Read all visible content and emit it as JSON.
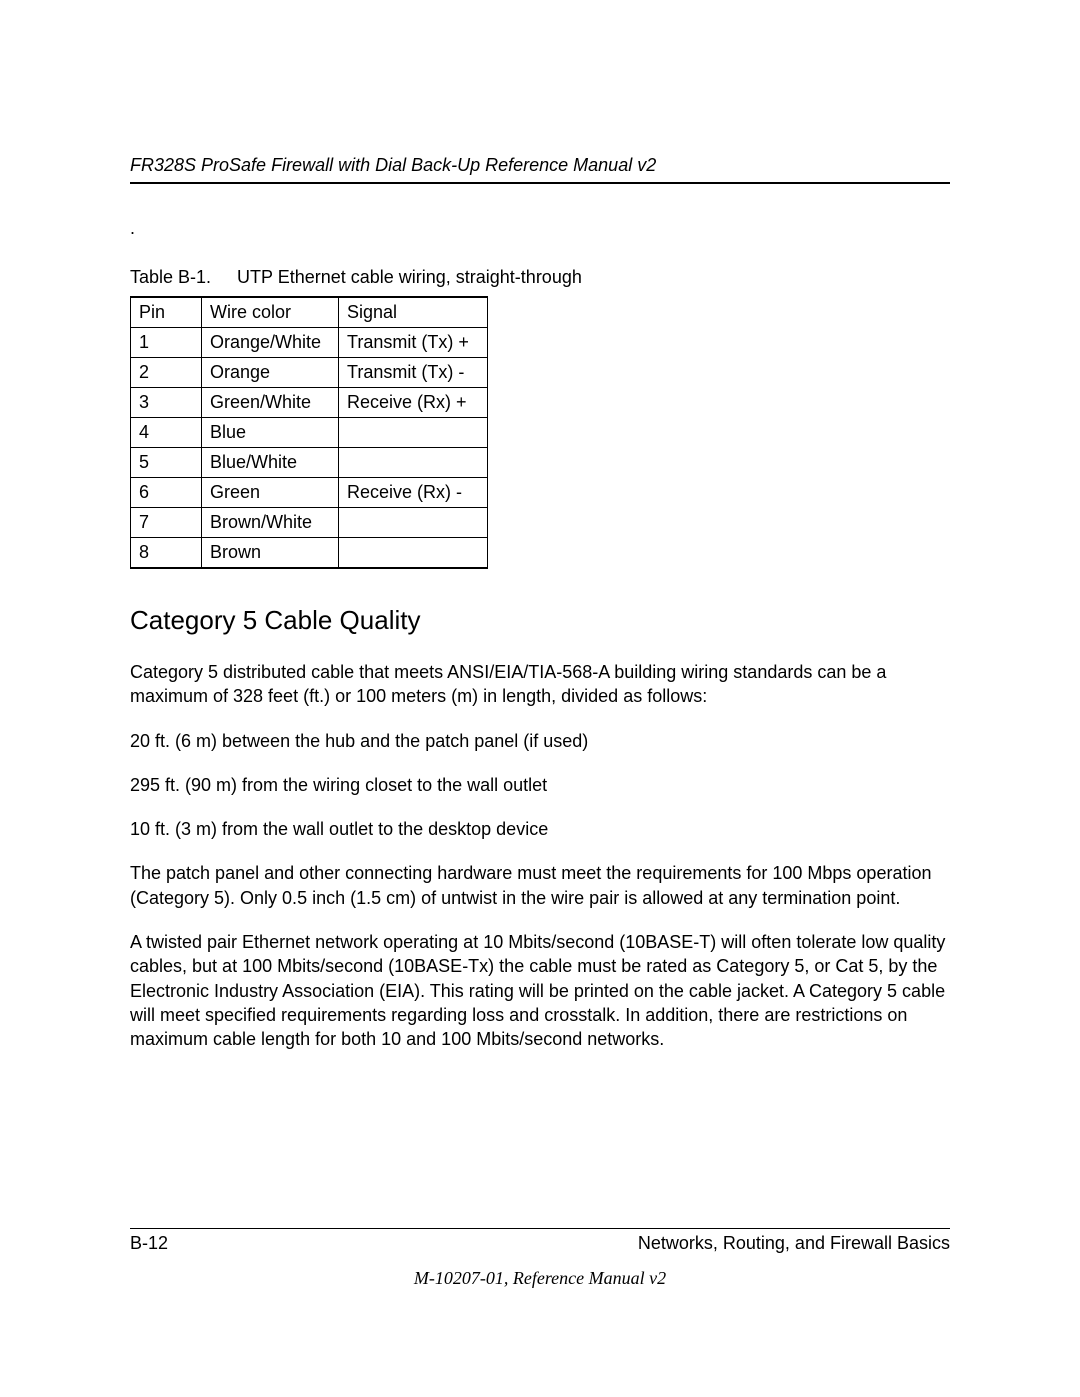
{
  "header": {
    "title": "FR328S ProSafe Firewall with Dial Back-Up Reference Manual v2"
  },
  "dot": ".",
  "table": {
    "caption_label": "Table B-1.",
    "caption_text": "UTP Ethernet cable wiring, straight-through",
    "columns": [
      "Pin",
      "Wire color",
      "Signal"
    ],
    "rows": [
      [
        "1",
        "Orange/White",
        "Transmit (Tx) +"
      ],
      [
        "2",
        "Orange",
        "Transmit (Tx) -"
      ],
      [
        "3",
        "Green/White",
        "Receive (Rx) +"
      ],
      [
        "4",
        "Blue",
        ""
      ],
      [
        "5",
        "Blue/White",
        ""
      ],
      [
        "6",
        "Green",
        "Receive (Rx) -"
      ],
      [
        "7",
        "Brown/White",
        ""
      ],
      [
        "8",
        "Brown",
        ""
      ]
    ]
  },
  "section": {
    "heading": "Category 5 Cable Quality",
    "p1": "Category 5 distributed cable that meets ANSI/EIA/TIA-568-A building wiring standards can be a maximum of 328 feet (ft.) or 100 meters (m) in length, divided as follows:",
    "p2": "20 ft. (6 m) between the hub and the patch panel (if used)",
    "p3": "295 ft. (90 m) from the wiring closet to the wall outlet",
    "p4": "10 ft. (3 m) from the wall outlet to the desktop device",
    "p5": "The patch panel and other connecting hardware must meet the requirements for 100 Mbps operation (Category 5). Only 0.5 inch (1.5 cm) of untwist in the wire pair is allowed at any termination point.",
    "p6": "A twisted pair Ethernet network operating at 10 Mbits/second (10BASE-T) will often tolerate low quality cables, but at 100 Mbits/second (10BASE-Tx) the cable must be rated as Category 5, or Cat 5, by the Electronic Industry Association (EIA). This rating will be printed on the cable jacket. A Category 5 cable will meet specified requirements regarding loss and crosstalk. In addition, there are restrictions on maximum cable length for both 10 and 100 Mbits/second networks."
  },
  "footer": {
    "left": "B-12",
    "right": "Networks, Routing, and Firewall Basics",
    "center": "M-10207-01, Reference Manual v2"
  }
}
